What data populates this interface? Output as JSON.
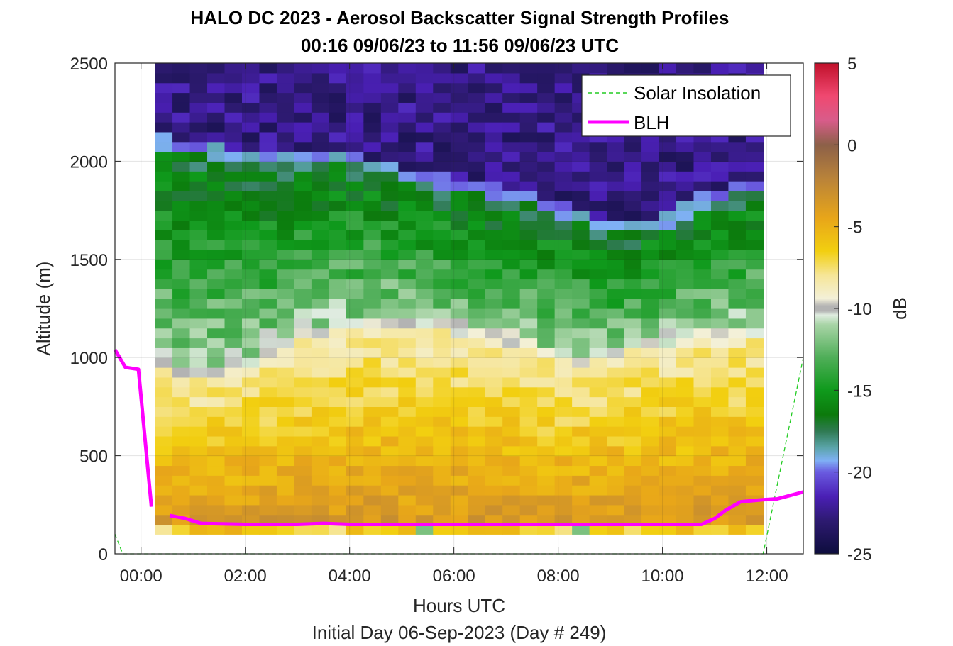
{
  "chart_data": {
    "type": "heatmap",
    "title": "HALO DC 2023 - Aerosol Backscatter Signal Strength Profiles",
    "subtitle": "00:16 09/06/23 to 11:56 09/06/23  UTC",
    "xlabel": "Hours UTC",
    "xlabel2": "Initial Day 06-Sep-2023 (Day # 249)",
    "ylabel": "Altitude (m)",
    "colorbar_label": "dB",
    "xlim": [
      -0.5,
      12.7
    ],
    "ylim": [
      0,
      2500
    ],
    "clim": [
      -25,
      5
    ],
    "x_ticks": [
      0,
      2,
      4,
      6,
      8,
      10,
      12
    ],
    "x_tick_labels": [
      "00:00",
      "02:00",
      "04:00",
      "06:00",
      "08:00",
      "10:00",
      "12:00"
    ],
    "y_ticks": [
      0,
      500,
      1000,
      1500,
      2000,
      2500
    ],
    "y_tick_labels": [
      "0",
      "500",
      "1000",
      "1500",
      "2000",
      "2500"
    ],
    "c_ticks": [
      5,
      0,
      -5,
      -10,
      -15,
      -20,
      -25
    ],
    "c_tick_labels": [
      "5",
      "0",
      "-5",
      "-10",
      "-15",
      "-20",
      "-25"
    ],
    "grid": true,
    "legend_position": "top-right",
    "heatmap_extent": {
      "x": [
        0.27,
        11.93
      ],
      "y": [
        100,
        2500
      ]
    },
    "heatmap_cell": {
      "dx": 0.333,
      "dy": 50
    },
    "colormap_stops": [
      {
        "v": -25,
        "color": "#0d0d3d"
      },
      {
        "v": -23,
        "color": "#2d1a70"
      },
      {
        "v": -21.5,
        "color": "#4a1fb5"
      },
      {
        "v": -20,
        "color": "#6a5be0"
      },
      {
        "v": -19.3,
        "color": "#7fb0f5"
      },
      {
        "v": -18.5,
        "color": "#5aa4a8"
      },
      {
        "v": -17.5,
        "color": "#2f7a52"
      },
      {
        "v": -16.5,
        "color": "#0c7a0c"
      },
      {
        "v": -15,
        "color": "#0f9a1c"
      },
      {
        "v": -13,
        "color": "#4fae58"
      },
      {
        "v": -11,
        "color": "#a8d4a6"
      },
      {
        "v": -10.4,
        "color": "#dfece0"
      },
      {
        "v": -10.15,
        "color": "#b3b3b3"
      },
      {
        "v": -9.85,
        "color": "#b3b3b3"
      },
      {
        "v": -9.4,
        "color": "#f3f0d8"
      },
      {
        "v": -8,
        "color": "#f6e699"
      },
      {
        "v": -6.5,
        "color": "#f2cf10"
      },
      {
        "v": -4.5,
        "color": "#e8a619"
      },
      {
        "v": -2,
        "color": "#b8823a"
      },
      {
        "v": 0,
        "color": "#8c6048"
      },
      {
        "v": 1.5,
        "color": "#d85c8a"
      },
      {
        "v": 3,
        "color": "#f04870"
      },
      {
        "v": 5,
        "color": "#c0102a"
      }
    ],
    "signal_layers": {
      "aerosol_top_m": [
        [
          0.27,
          990
        ],
        [
          1.0,
          880
        ],
        [
          2.0,
          940
        ],
        [
          3.0,
          1080
        ],
        [
          4.0,
          1140
        ],
        [
          5.0,
          1150
        ],
        [
          6.0,
          1120
        ],
        [
          7.0,
          1080
        ],
        [
          7.7,
          1000
        ],
        [
          8.5,
          960
        ],
        [
          9.5,
          1030
        ],
        [
          10.5,
          1090
        ],
        [
          11.93,
          1110
        ]
      ],
      "residual_top_m": [
        [
          0.27,
          2080
        ],
        [
          1.0,
          2040
        ],
        [
          2.0,
          1990
        ],
        [
          3.0,
          1980
        ],
        [
          4.0,
          1990
        ],
        [
          5.0,
          1920
        ],
        [
          6.0,
          1850
        ],
        [
          7.0,
          1810
        ],
        [
          8.0,
          1730
        ],
        [
          9.0,
          1640
        ],
        [
          10.0,
          1660
        ],
        [
          11.0,
          1800
        ],
        [
          11.93,
          1870
        ]
      ]
    },
    "series": [
      {
        "name": "Solar Insolation",
        "style": "dashed",
        "color": "#22cc22",
        "x": [
          -0.5,
          -0.35,
          0.3,
          11.93,
          12.7
        ],
        "y": [
          100,
          0,
          0,
          0,
          1000
        ]
      },
      {
        "name": "BLH",
        "style": "solid",
        "color": "#ff00ff",
        "segments": [
          {
            "x": [
              -0.5,
              -0.3,
              -0.05,
              0.2
            ],
            "y": [
              1040,
              950,
              940,
              240
            ]
          },
          {
            "x": [
              0.55,
              0.85,
              1.15,
              2.0,
              3.0,
              3.5,
              4.0,
              5.0,
              6.0,
              7.0,
              8.0,
              9.0,
              10.0,
              10.75,
              11.0,
              11.2,
              11.5,
              11.9,
              12.2,
              12.7
            ],
            "y": [
              195,
              180,
              155,
              150,
              150,
              155,
              150,
              150,
              150,
              150,
              150,
              150,
              150,
              150,
              180,
              220,
              265,
              275,
              280,
              315
            ]
          }
        ]
      }
    ]
  }
}
